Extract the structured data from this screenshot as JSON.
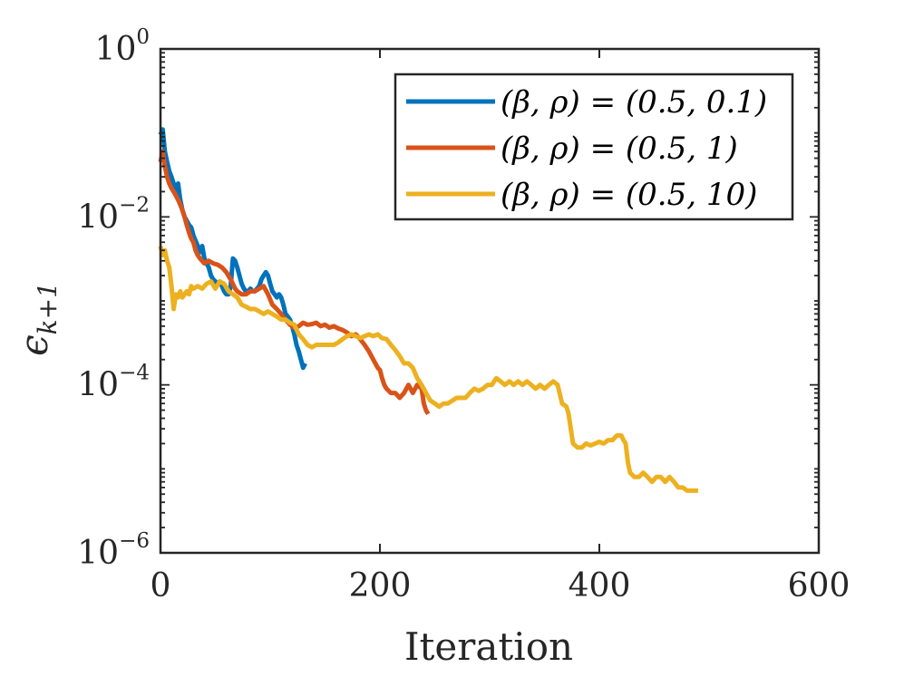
{
  "chart_data": {
    "type": "line",
    "xlabel": "Iteration",
    "ylabel": "ϵ_{k+1}",
    "ylabel_main": "ϵ",
    "ylabel_sub": "k+1",
    "xlim": [
      0,
      600
    ],
    "ylim": [
      1e-06,
      1
    ],
    "yscale": "log",
    "grid": false,
    "legend_position": "top-right",
    "x_ticks": [
      "0",
      "200",
      "400",
      "600"
    ],
    "y_ticks": [
      {
        "base": "10",
        "exp": "0"
      },
      {
        "base": "10",
        "exp": "−2"
      },
      {
        "base": "10",
        "exp": "−4"
      },
      {
        "base": "10",
        "exp": "−6"
      }
    ],
    "series": [
      {
        "name": "(β, ρ) = (0.5, 0.1)",
        "color": "#0072BD",
        "points": [
          [
            0,
            0.095
          ],
          [
            2,
            0.11
          ],
          [
            4,
            0.06
          ],
          [
            6,
            0.045
          ],
          [
            8,
            0.035
          ],
          [
            10,
            0.03
          ],
          [
            12,
            0.025
          ],
          [
            14,
            0.02
          ],
          [
            16,
            0.025
          ],
          [
            18,
            0.016
          ],
          [
            20,
            0.012
          ],
          [
            22,
            0.01
          ],
          [
            24,
            0.009
          ],
          [
            26,
            0.008
          ],
          [
            28,
            0.0075
          ],
          [
            30,
            0.006
          ],
          [
            32,
            0.0052
          ],
          [
            34,
            0.0045
          ],
          [
            36,
            0.0038
          ],
          [
            38,
            0.0045
          ],
          [
            40,
            0.0032
          ],
          [
            42,
            0.0028
          ],
          [
            44,
            0.0025
          ],
          [
            46,
            0.002
          ],
          [
            48,
            0.0018
          ],
          [
            50,
            0.0017
          ],
          [
            52,
            0.0016
          ],
          [
            54,
            0.0017
          ],
          [
            56,
            0.0015
          ],
          [
            58,
            0.0013
          ],
          [
            60,
            0.0012
          ],
          [
            62,
            0.0012
          ],
          [
            64,
            0.0015
          ],
          [
            66,
            0.0032
          ],
          [
            68,
            0.003
          ],
          [
            70,
            0.0025
          ],
          [
            72,
            0.002
          ],
          [
            74,
            0.0016
          ],
          [
            76,
            0.0014
          ],
          [
            78,
            0.0013
          ],
          [
            80,
            0.0013
          ],
          [
            82,
            0.0014
          ],
          [
            84,
            0.0013
          ],
          [
            86,
            0.0013
          ],
          [
            88,
            0.0014
          ],
          [
            90,
            0.0015
          ],
          [
            92,
            0.0018
          ],
          [
            94,
            0.002
          ],
          [
            96,
            0.0022
          ],
          [
            98,
            0.002
          ],
          [
            100,
            0.0016
          ],
          [
            102,
            0.0013
          ],
          [
            104,
            0.0012
          ],
          [
            106,
            0.0011
          ],
          [
            108,
            0.0012
          ],
          [
            110,
            0.0011
          ],
          [
            112,
            0.0009
          ],
          [
            114,
            0.0007
          ],
          [
            116,
            0.00065
          ],
          [
            118,
            0.0006
          ],
          [
            120,
            0.0005
          ],
          [
            122,
            0.0004
          ],
          [
            124,
            0.0003
          ],
          [
            126,
            0.00025
          ],
          [
            128,
            0.0002
          ],
          [
            130,
            0.00016
          ],
          [
            132,
            0.00018
          ]
        ]
      },
      {
        "name": "(β, ρ) = (0.5, 1)",
        "color": "#D95319",
        "points": [
          [
            0,
            0.045
          ],
          [
            2,
            0.06
          ],
          [
            4,
            0.04
          ],
          [
            6,
            0.03
          ],
          [
            8,
            0.025
          ],
          [
            10,
            0.022
          ],
          [
            12,
            0.02
          ],
          [
            14,
            0.018
          ],
          [
            16,
            0.016
          ],
          [
            18,
            0.014
          ],
          [
            20,
            0.012
          ],
          [
            22,
            0.01
          ],
          [
            24,
            0.008
          ],
          [
            26,
            0.0065
          ],
          [
            28,
            0.0055
          ],
          [
            30,
            0.005
          ],
          [
            32,
            0.004
          ],
          [
            34,
            0.0035
          ],
          [
            36,
            0.0032
          ],
          [
            40,
            0.0028
          ],
          [
            44,
            0.003
          ],
          [
            48,
            0.0028
          ],
          [
            52,
            0.0027
          ],
          [
            56,
            0.0025
          ],
          [
            60,
            0.0022
          ],
          [
            64,
            0.0018
          ],
          [
            68,
            0.0014
          ],
          [
            70,
            0.0013
          ],
          [
            74,
            0.0012
          ],
          [
            78,
            0.0012
          ],
          [
            82,
            0.0013
          ],
          [
            86,
            0.0013
          ],
          [
            90,
            0.0014
          ],
          [
            94,
            0.0015
          ],
          [
            98,
            0.0012
          ],
          [
            102,
            0.0009
          ],
          [
            106,
            0.0008
          ],
          [
            110,
            0.0007
          ],
          [
            114,
            0.0006
          ],
          [
            118,
            0.00052
          ],
          [
            122,
            0.00048
          ],
          [
            126,
            0.0005
          ],
          [
            130,
            0.00055
          ],
          [
            134,
            0.00052
          ],
          [
            138,
            0.00053
          ],
          [
            142,
            0.00055
          ],
          [
            146,
            0.0005
          ],
          [
            150,
            0.00052
          ],
          [
            154,
            0.00048
          ],
          [
            158,
            0.0005
          ],
          [
            162,
            0.00047
          ],
          [
            166,
            0.00045
          ],
          [
            170,
            0.00042
          ],
          [
            174,
            0.00038
          ],
          [
            178,
            0.0004
          ],
          [
            182,
            0.00035
          ],
          [
            186,
            0.0003
          ],
          [
            190,
            0.00025
          ],
          [
            194,
            0.0002
          ],
          [
            198,
            0.00016
          ],
          [
            200,
            0.00015
          ],
          [
            202,
            0.00012
          ],
          [
            204,
            0.0001
          ],
          [
            206,
            9e-05
          ],
          [
            210,
            8e-05
          ],
          [
            214,
            8e-05
          ],
          [
            218,
            7e-05
          ],
          [
            222,
            8e-05
          ],
          [
            226,
            0.0001
          ],
          [
            230,
            8e-05
          ],
          [
            234,
            0.0001
          ],
          [
            238,
            9e-05
          ],
          [
            240,
            6e-05
          ],
          [
            242,
            5e-05
          ],
          [
            244,
            4.5e-05
          ]
        ]
      },
      {
        "name": "(β, ρ) = (0.5, 10)",
        "color": "#EDB120",
        "points": [
          [
            0,
            0.0045
          ],
          [
            2,
            0.0035
          ],
          [
            4,
            0.004
          ],
          [
            6,
            0.003
          ],
          [
            8,
            0.0025
          ],
          [
            10,
            0.0015
          ],
          [
            12,
            0.0008
          ],
          [
            14,
            0.0012
          ],
          [
            16,
            0.0011
          ],
          [
            18,
            0.0013
          ],
          [
            20,
            0.0011
          ],
          [
            22,
            0.0012
          ],
          [
            24,
            0.0013
          ],
          [
            26,
            0.0012
          ],
          [
            28,
            0.0015
          ],
          [
            30,
            0.0014
          ],
          [
            34,
            0.0015
          ],
          [
            38,
            0.0014
          ],
          [
            42,
            0.0016
          ],
          [
            46,
            0.0017
          ],
          [
            50,
            0.0014
          ],
          [
            54,
            0.0017
          ],
          [
            58,
            0.0016
          ],
          [
            62,
            0.0013
          ],
          [
            66,
            0.0012
          ],
          [
            70,
            0.0011
          ],
          [
            74,
            0.0009
          ],
          [
            78,
            0.00085
          ],
          [
            82,
            0.0008
          ],
          [
            86,
            0.0008
          ],
          [
            90,
            0.00075
          ],
          [
            94,
            0.0007
          ],
          [
            98,
            0.00075
          ],
          [
            102,
            0.0007
          ],
          [
            106,
            0.00065
          ],
          [
            110,
            0.0006
          ],
          [
            114,
            0.0006
          ],
          [
            118,
            0.00055
          ],
          [
            122,
            0.00052
          ],
          [
            126,
            0.0004
          ],
          [
            130,
            0.00035
          ],
          [
            134,
            0.0003
          ],
          [
            138,
            0.00028
          ],
          [
            142,
            0.0003
          ],
          [
            146,
            0.0003
          ],
          [
            150,
            0.0003
          ],
          [
            154,
            0.0003
          ],
          [
            158,
            0.0003
          ],
          [
            162,
            0.00032
          ],
          [
            166,
            0.00035
          ],
          [
            170,
            0.00038
          ],
          [
            174,
            0.0004
          ],
          [
            178,
            0.00038
          ],
          [
            182,
            0.00036
          ],
          [
            186,
            0.00038
          ],
          [
            190,
            0.0004
          ],
          [
            194,
            0.00038
          ],
          [
            198,
            0.0004
          ],
          [
            202,
            0.00036
          ],
          [
            206,
            0.00035
          ],
          [
            210,
            0.0003
          ],
          [
            214,
            0.00026
          ],
          [
            218,
            0.00022
          ],
          [
            222,
            0.00018
          ],
          [
            226,
            0.00018
          ],
          [
            230,
            0.00016
          ],
          [
            234,
            0.00012
          ],
          [
            238,
            0.0001
          ],
          [
            242,
            8e-05
          ],
          [
            246,
            6.5e-05
          ],
          [
            250,
            6e-05
          ],
          [
            254,
            5.5e-05
          ],
          [
            258,
            6e-05
          ],
          [
            262,
            6e-05
          ],
          [
            266,
            6.5e-05
          ],
          [
            270,
            7e-05
          ],
          [
            274,
            7e-05
          ],
          [
            278,
            7e-05
          ],
          [
            282,
            8e-05
          ],
          [
            286,
            9e-05
          ],
          [
            290,
            8.5e-05
          ],
          [
            294,
            9e-05
          ],
          [
            298,
            0.0001
          ],
          [
            302,
            0.0001
          ],
          [
            306,
            0.00012
          ],
          [
            310,
            0.00011
          ],
          [
            314,
            0.0001
          ],
          [
            318,
            0.00011
          ],
          [
            322,
            0.0001
          ],
          [
            326,
            0.00011
          ],
          [
            330,
            0.0001
          ],
          [
            334,
            0.00011
          ],
          [
            338,
            0.0001
          ],
          [
            342,
            9e-05
          ],
          [
            346,
            0.0001
          ],
          [
            350,
            9e-05
          ],
          [
            354,
            0.0001
          ],
          [
            358,
            0.00011
          ],
          [
            362,
            0.0001
          ],
          [
            366,
            6e-05
          ],
          [
            370,
            5.5e-05
          ],
          [
            372,
            4.5e-05
          ],
          [
            374,
            3e-05
          ],
          [
            376,
            2e-05
          ],
          [
            380,
            1.8e-05
          ],
          [
            384,
            1.8e-05
          ],
          [
            388,
            2e-05
          ],
          [
            392,
            1.9e-05
          ],
          [
            396,
            2e-05
          ],
          [
            400,
            2.1e-05
          ],
          [
            404,
            2e-05
          ],
          [
            408,
            2.2e-05
          ],
          [
            412,
            2.2e-05
          ],
          [
            416,
            2.5e-05
          ],
          [
            420,
            2.5e-05
          ],
          [
            422,
            2.2e-05
          ],
          [
            424,
            2e-05
          ],
          [
            426,
            1.2e-05
          ],
          [
            428,
            9e-06
          ],
          [
            432,
            8e-06
          ],
          [
            436,
            8e-06
          ],
          [
            440,
            9e-06
          ],
          [
            444,
            8e-06
          ],
          [
            448,
            7e-06
          ],
          [
            452,
            8e-06
          ],
          [
            456,
            8e-06
          ],
          [
            460,
            7e-06
          ],
          [
            464,
            8e-06
          ],
          [
            468,
            7e-06
          ],
          [
            472,
            6e-06
          ],
          [
            476,
            6e-06
          ],
          [
            480,
            5.5e-06
          ],
          [
            484,
            5.5e-06
          ],
          [
            488,
            5.5e-06
          ],
          [
            490,
            5.5e-06
          ]
        ]
      }
    ]
  }
}
